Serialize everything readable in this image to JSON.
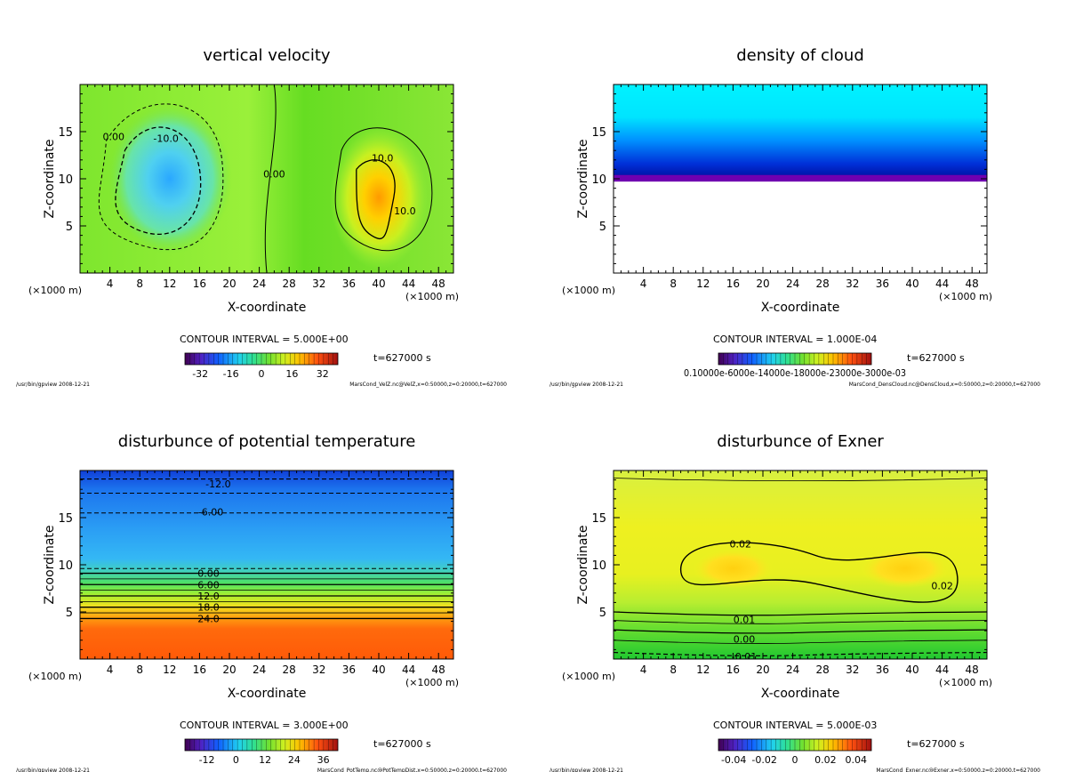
{
  "chart_data": [
    {
      "type": "heatmap",
      "variant": "filled-contour",
      "title": "vertical velocity",
      "xlabel": "X-coordinate",
      "ylabel": "Z-coordinate",
      "x_unit": "(×1000 m)",
      "xlim": [
        0,
        50
      ],
      "ylim": [
        0,
        20
      ],
      "x_ticks": [
        4,
        8,
        12,
        16,
        20,
        24,
        28,
        32,
        36,
        40,
        44,
        48
      ],
      "y_ticks": [
        5,
        10,
        15
      ],
      "contour_labels": [
        {
          "text": "0.00",
          "x": 4.5,
          "y": 14.5
        },
        {
          "text": "-10.0",
          "x": 11.5,
          "y": 14.3
        },
        {
          "text": "0.00",
          "x": 26.0,
          "y": 10.5
        },
        {
          "text": "10.0",
          "x": 40.5,
          "y": 12.2
        },
        {
          "text": "10.0",
          "x": 43.5,
          "y": 6.6
        }
      ],
      "contour_interval": "CONTOUR INTERVAL = 5.000E+00",
      "time": "t=627000 s",
      "colorbar_ticks": [
        "-32",
        "-16",
        "0",
        "16",
        "32"
      ],
      "colorbar_range": [
        -40,
        40
      ],
      "footer_left": "/usr/bin/gpview   2008-12-21",
      "footer_right": "MarsCond_VelZ.nc@VelZ,x=0:50000,z=0:20000,t=627000"
    },
    {
      "type": "heatmap",
      "variant": "filled-contour",
      "title": "density of cloud",
      "xlabel": "X-coordinate",
      "ylabel": "Z-coordinate",
      "x_unit": "(×1000 m)",
      "xlim": [
        0,
        50
      ],
      "ylim": [
        0,
        20
      ],
      "x_ticks": [
        4,
        8,
        12,
        16,
        20,
        24,
        28,
        32,
        36,
        40,
        44,
        48
      ],
      "y_ticks": [
        5,
        10,
        15
      ],
      "contour_interval": "CONTOUR INTERVAL = 1.000E-04",
      "time": "t=627000 s",
      "colorbar_ticks_text": "0.10000e-6000e-14000e-18000e-23000e-3000e-03",
      "footer_left": "/usr/bin/gpview   2008-12-21",
      "footer_right": "MarsCond_DensCloud.nc@DensCloud,x=0:50000,z=0:20000,t=627000"
    },
    {
      "type": "heatmap",
      "variant": "filled-contour",
      "title": "disturbunce of potential temperature",
      "xlabel": "X-coordinate",
      "ylabel": "Z-coordinate",
      "x_unit": "(×1000 m)",
      "xlim": [
        0,
        50
      ],
      "ylim": [
        0,
        20
      ],
      "x_ticks": [
        4,
        8,
        12,
        16,
        20,
        24,
        28,
        32,
        36,
        40,
        44,
        48
      ],
      "y_ticks": [
        5,
        10,
        15
      ],
      "contour_labels": [
        {
          "text": "-12.0",
          "x": 18.5,
          "y": 18.6
        },
        {
          "text": "-6.00",
          "x": 17.5,
          "y": 15.6
        },
        {
          "text": "0.00",
          "x": 17.2,
          "y": 9.1
        },
        {
          "text": "6.00",
          "x": 17.2,
          "y": 7.9
        },
        {
          "text": "12.0",
          "x": 17.2,
          "y": 6.7
        },
        {
          "text": "18.0",
          "x": 17.2,
          "y": 5.5
        },
        {
          "text": "24.0",
          "x": 17.2,
          "y": 4.3
        }
      ],
      "contour_interval": "CONTOUR INTERVAL = 3.000E+00",
      "time": "t=627000 s",
      "colorbar_ticks": [
        "-12",
        "0",
        "12",
        "24",
        "36"
      ],
      "colorbar_range": [
        -21,
        42
      ],
      "footer_left": "/usr/bin/gpview   2008-12-21",
      "footer_right": "MarsCond_PotTemp.nc@PotTempDist,x=0:50000,z=0:20000,t=627000"
    },
    {
      "type": "heatmap",
      "variant": "filled-contour",
      "title": "disturbunce of Exner",
      "xlabel": "X-coordinate",
      "ylabel": "Z-coordinate",
      "x_unit": "(×1000 m)",
      "xlim": [
        0,
        50
      ],
      "ylim": [
        0,
        20
      ],
      "x_ticks": [
        4,
        8,
        12,
        16,
        20,
        24,
        28,
        32,
        36,
        40,
        44,
        48
      ],
      "y_ticks": [
        5,
        10,
        15
      ],
      "contour_labels": [
        {
          "text": "0.02",
          "x": 17.0,
          "y": 12.2
        },
        {
          "text": "0.02",
          "x": 44.0,
          "y": 7.8
        },
        {
          "text": "0.01",
          "x": 17.5,
          "y": 4.2
        },
        {
          "text": "0.00",
          "x": 17.5,
          "y": 2.1
        },
        {
          "text": "-0.01",
          "x": 17.5,
          "y": 0.3
        }
      ],
      "contour_interval": "CONTOUR INTERVAL = 5.000E-03",
      "time": "t=627000 s",
      "colorbar_ticks": [
        "-0.04",
        "-0.02",
        "0",
        "0.02",
        "0.04"
      ],
      "colorbar_range": [
        -0.05,
        0.05
      ],
      "footer_left": "/usr/bin/gpview   2008-12-21",
      "footer_right": "MarsCond_Exner.nc@Exner,x=0:50000,z=0:20000,t=627000"
    }
  ]
}
